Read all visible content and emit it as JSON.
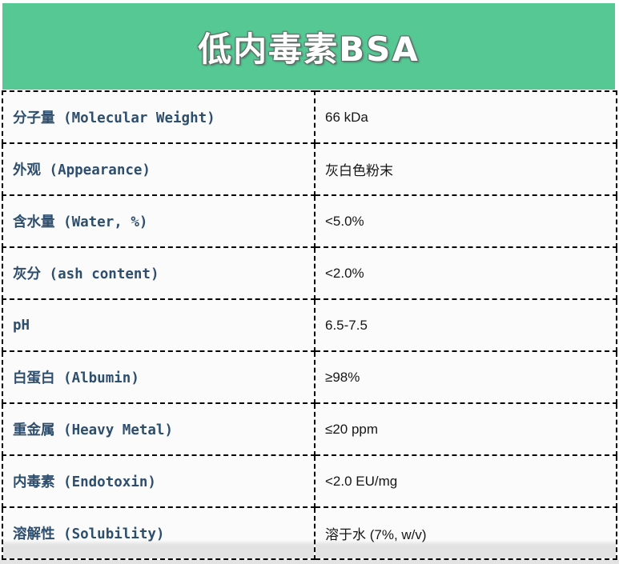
{
  "title": "低内毒素BSA",
  "colors": {
    "header_bg": "#55c894",
    "label_text": "#2e4e6e",
    "value_text": "#161616",
    "border": "#000000",
    "row_bg": "#fbfbfb",
    "bottom_strip": "#e3e3e3"
  },
  "table": {
    "rows": [
      {
        "label": "分子量 (Molecular Weight)",
        "value": "66 kDa"
      },
      {
        "label": "外观 (Appearance)",
        "value": "灰白色粉末"
      },
      {
        "label": "含水量 (Water, %)",
        "value": "<5.0%"
      },
      {
        "label": "灰分 (ash content)",
        "value": "<2.0%"
      },
      {
        "label": "pH",
        "value": "6.5-7.5"
      },
      {
        "label": "白蛋白 (Albumin)",
        "value": "≥98%"
      },
      {
        "label": "重金属 (Heavy Metal)",
        "value": "≤20 ppm"
      },
      {
        "label": "内毒素 (Endotoxin)",
        "value": "<2.0 EU/mg"
      },
      {
        "label": "溶解性 (Solubility)",
        "value": "溶于水 (7%, w/v)"
      }
    ]
  }
}
